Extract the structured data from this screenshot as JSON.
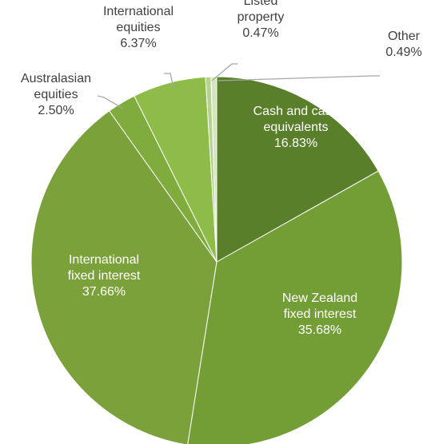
{
  "chart_data": {
    "type": "pie",
    "title": "",
    "start_angle_deg": 0,
    "direction": "clockwise",
    "slices": [
      {
        "name": "Cash and cash equivalents",
        "value": 16.83,
        "label_lines": [
          "Cash and cash",
          "equivalents"
        ],
        "value_label": "16.83%",
        "color": "#5a7f2b",
        "label_position": "inside"
      },
      {
        "name": "New Zealand fixed interest",
        "value": 35.68,
        "label_lines": [
          "New Zealand",
          "fixed interest"
        ],
        "value_label": "35.68%",
        "color": "#739e35",
        "label_position": "inside"
      },
      {
        "name": "International fixed interest",
        "value": 37.66,
        "label_lines": [
          "International",
          "fixed interest"
        ],
        "value_label": "37.66%",
        "color": "#7ba23a",
        "label_position": "inside"
      },
      {
        "name": "Australasian equities",
        "value": 2.5,
        "label_lines": [
          "Australasian",
          "equities"
        ],
        "value_label": "2.50%",
        "color": "#80ac3d",
        "label_position": "outside"
      },
      {
        "name": "International equities",
        "value": 6.37,
        "label_lines": [
          "International",
          "equities"
        ],
        "value_label": "6.37%",
        "color": "#8dbd48",
        "label_position": "outside"
      },
      {
        "name": "Listed property",
        "value": 0.47,
        "label_lines": [
          "Listed",
          "property"
        ],
        "value_label": "0.47%",
        "color": "#b5d38d",
        "label_position": "outside"
      },
      {
        "name": "Other",
        "value": 0.49,
        "label_lines": [
          "Other"
        ],
        "value_label": "0.49%",
        "color": "#d3e5bb",
        "label_position": "outside"
      }
    ]
  }
}
